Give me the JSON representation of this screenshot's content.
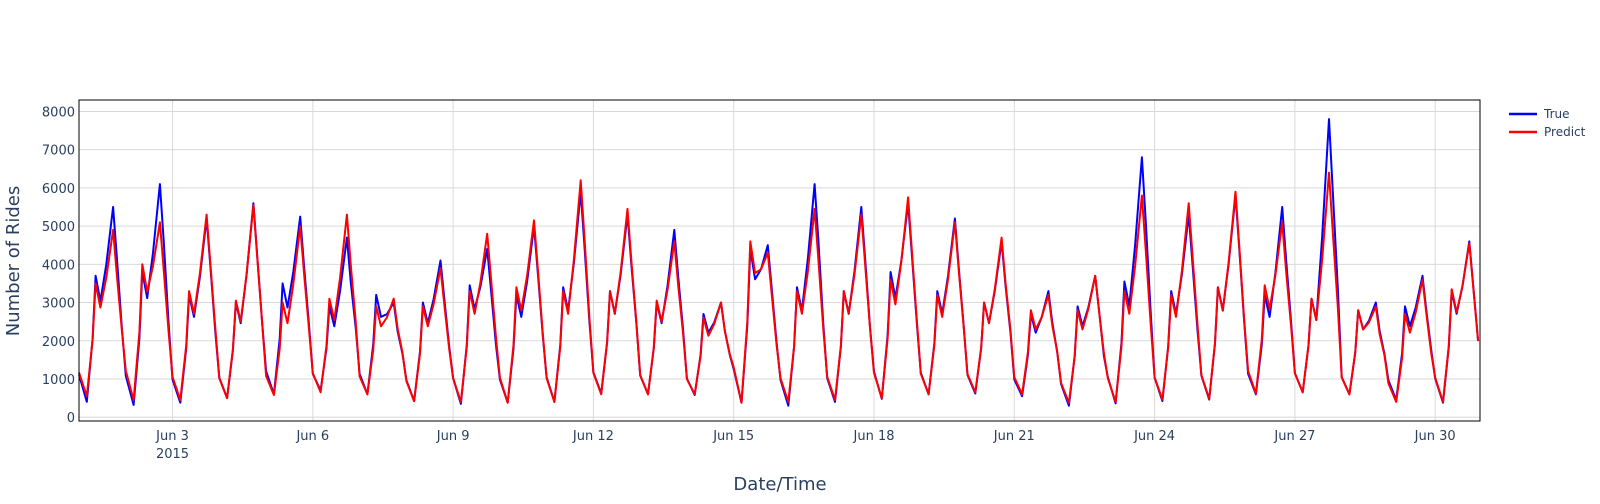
{
  "chart_data": {
    "type": "line",
    "title": "",
    "xlabel": "Date/Time",
    "ylabel": "Number of Rides",
    "x_range": [
      "2015-06-01T00:00",
      "2015-06-30T23:00"
    ],
    "ylim": [
      -100,
      8300
    ],
    "x_ticks": [
      {
        "date": "2015-06-03",
        "label": "Jun 3",
        "sublabel": "2015"
      },
      {
        "date": "2015-06-06",
        "label": "Jun 6",
        "sublabel": ""
      },
      {
        "date": "2015-06-09",
        "label": "Jun 9",
        "sublabel": ""
      },
      {
        "date": "2015-06-12",
        "label": "Jun 12",
        "sublabel": ""
      },
      {
        "date": "2015-06-15",
        "label": "Jun 15",
        "sublabel": ""
      },
      {
        "date": "2015-06-18",
        "label": "Jun 18",
        "sublabel": ""
      },
      {
        "date": "2015-06-21",
        "label": "Jun 21",
        "sublabel": ""
      },
      {
        "date": "2015-06-24",
        "label": "Jun 24",
        "sublabel": ""
      },
      {
        "date": "2015-06-27",
        "label": "Jun 27",
        "sublabel": ""
      },
      {
        "date": "2015-06-30",
        "label": "Jun 30",
        "sublabel": ""
      }
    ],
    "y_ticks": [
      {
        "value": 0,
        "label": "0"
      },
      {
        "value": 1000,
        "label": "1000"
      },
      {
        "value": 2000,
        "label": "2000"
      },
      {
        "value": 3000,
        "label": "3000"
      },
      {
        "value": 4000,
        "label": "4000"
      },
      {
        "value": 5000,
        "label": "5000"
      },
      {
        "value": 6000,
        "label": "6000"
      },
      {
        "value": 7000,
        "label": "7000"
      },
      {
        "value": 8000,
        "label": "8000"
      }
    ],
    "grid": true,
    "legend_position": "top-right",
    "series": [
      {
        "name": "True",
        "color": "#0000ff",
        "daily": [
          {
            "date": "2015-06-01",
            "min": 400,
            "am": 3700,
            "pm": 5500
          },
          {
            "date": "2015-06-02",
            "min": 320,
            "am": 3800,
            "pm": 6100
          },
          {
            "date": "2015-06-03",
            "min": 380,
            "am": 3200,
            "pm": 5200
          },
          {
            "date": "2015-06-04",
            "min": 500,
            "am": 3000,
            "pm": 5600
          },
          {
            "date": "2015-06-05",
            "min": 600,
            "am": 3500,
            "pm": 5250
          },
          {
            "date": "2015-06-06",
            "min": 700,
            "am": 2900,
            "pm": 4700
          },
          {
            "date": "2015-06-07",
            "min": 600,
            "am": 3200,
            "pm": 3000
          },
          {
            "date": "2015-06-08",
            "min": 420,
            "am": 3000,
            "pm": 4100
          },
          {
            "date": "2015-06-09",
            "min": 350,
            "am": 3450,
            "pm": 4400
          },
          {
            "date": "2015-06-10",
            "min": 380,
            "am": 3200,
            "pm": 5000
          },
          {
            "date": "2015-06-11",
            "min": 400,
            "am": 3400,
            "pm": 5900
          },
          {
            "date": "2015-06-12",
            "min": 620,
            "am": 3300,
            "pm": 5300
          },
          {
            "date": "2015-06-13",
            "min": 600,
            "am": 3000,
            "pm": 4900
          },
          {
            "date": "2015-06-14",
            "min": 580,
            "am": 2700,
            "pm": 3000
          },
          {
            "date": "2015-06-15",
            "min": 380,
            "am": 4400,
            "pm": 4500
          },
          {
            "date": "2015-06-16",
            "min": 300,
            "am": 3400,
            "pm": 6100
          },
          {
            "date": "2015-06-17",
            "min": 400,
            "am": 3300,
            "pm": 5500
          },
          {
            "date": "2015-06-18",
            "min": 480,
            "am": 3800,
            "pm": 5600
          },
          {
            "date": "2015-06-19",
            "min": 600,
            "am": 3300,
            "pm": 5200
          },
          {
            "date": "2015-06-20",
            "min": 620,
            "am": 3000,
            "pm": 4600
          },
          {
            "date": "2015-06-21",
            "min": 550,
            "am": 2700,
            "pm": 3300
          },
          {
            "date": "2015-06-22",
            "min": 300,
            "am": 2900,
            "pm": 3700
          },
          {
            "date": "2015-06-23",
            "min": 360,
            "am": 3550,
            "pm": 6800
          },
          {
            "date": "2015-06-24",
            "min": 420,
            "am": 3300,
            "pm": 5300
          },
          {
            "date": "2015-06-25",
            "min": 460,
            "am": 3400,
            "pm": 5800
          },
          {
            "date": "2015-06-26",
            "min": 600,
            "am": 3200,
            "pm": 5500
          },
          {
            "date": "2015-06-27",
            "min": 650,
            "am": 3100,
            "pm": 7800
          },
          {
            "date": "2015-06-28",
            "min": 600,
            "am": 2800,
            "pm": 3000
          },
          {
            "date": "2015-06-29",
            "min": 450,
            "am": 2900,
            "pm": 3700
          },
          {
            "date": "2015-06-30",
            "min": 380,
            "am": 3300,
            "pm": 4600
          }
        ]
      },
      {
        "name": "Predict",
        "color": "#ff0000",
        "daily": [
          {
            "date": "2015-06-01",
            "min": 550,
            "am": 3500,
            "pm": 4900
          },
          {
            "date": "2015-06-02",
            "min": 450,
            "am": 4000,
            "pm": 5100
          },
          {
            "date": "2015-06-03",
            "min": 450,
            "am": 3300,
            "pm": 5300
          },
          {
            "date": "2015-06-04",
            "min": 500,
            "am": 3050,
            "pm": 5550
          },
          {
            "date": "2015-06-05",
            "min": 580,
            "am": 3000,
            "pm": 5000
          },
          {
            "date": "2015-06-06",
            "min": 650,
            "am": 3100,
            "pm": 5300
          },
          {
            "date": "2015-06-07",
            "min": 600,
            "am": 2900,
            "pm": 3100
          },
          {
            "date": "2015-06-08",
            "min": 420,
            "am": 2900,
            "pm": 3900
          },
          {
            "date": "2015-06-09",
            "min": 400,
            "am": 3300,
            "pm": 4800
          },
          {
            "date": "2015-06-10",
            "min": 380,
            "am": 3400,
            "pm": 5150
          },
          {
            "date": "2015-06-11",
            "min": 400,
            "am": 3300,
            "pm": 6200
          },
          {
            "date": "2015-06-12",
            "min": 600,
            "am": 3300,
            "pm": 5450
          },
          {
            "date": "2015-06-13",
            "min": 600,
            "am": 3050,
            "pm": 4600
          },
          {
            "date": "2015-06-14",
            "min": 600,
            "am": 2600,
            "pm": 3000
          },
          {
            "date": "2015-06-15",
            "min": 380,
            "am": 4600,
            "pm": 4300
          },
          {
            "date": "2015-06-16",
            "min": 400,
            "am": 3300,
            "pm": 5450
          },
          {
            "date": "2015-06-17",
            "min": 450,
            "am": 3300,
            "pm": 5300
          },
          {
            "date": "2015-06-18",
            "min": 500,
            "am": 3600,
            "pm": 5750
          },
          {
            "date": "2015-06-19",
            "min": 600,
            "am": 3200,
            "pm": 5100
          },
          {
            "date": "2015-06-20",
            "min": 650,
            "am": 3000,
            "pm": 4700
          },
          {
            "date": "2015-06-21",
            "min": 600,
            "am": 2800,
            "pm": 3200
          },
          {
            "date": "2015-06-22",
            "min": 380,
            "am": 2800,
            "pm": 3700
          },
          {
            "date": "2015-06-23",
            "min": 400,
            "am": 3300,
            "pm": 5800
          },
          {
            "date": "2015-06-24",
            "min": 460,
            "am": 3200,
            "pm": 5600
          },
          {
            "date": "2015-06-25",
            "min": 480,
            "am": 3400,
            "pm": 5900
          },
          {
            "date": "2015-06-26",
            "min": 620,
            "am": 3450,
            "pm": 5100
          },
          {
            "date": "2015-06-27",
            "min": 650,
            "am": 3100,
            "pm": 6400
          },
          {
            "date": "2015-06-28",
            "min": 600,
            "am": 2800,
            "pm": 2900
          },
          {
            "date": "2015-06-29",
            "min": 400,
            "am": 2700,
            "pm": 3600
          },
          {
            "date": "2015-06-30",
            "min": 400,
            "am": 3350,
            "pm": 4550
          }
        ]
      }
    ]
  }
}
